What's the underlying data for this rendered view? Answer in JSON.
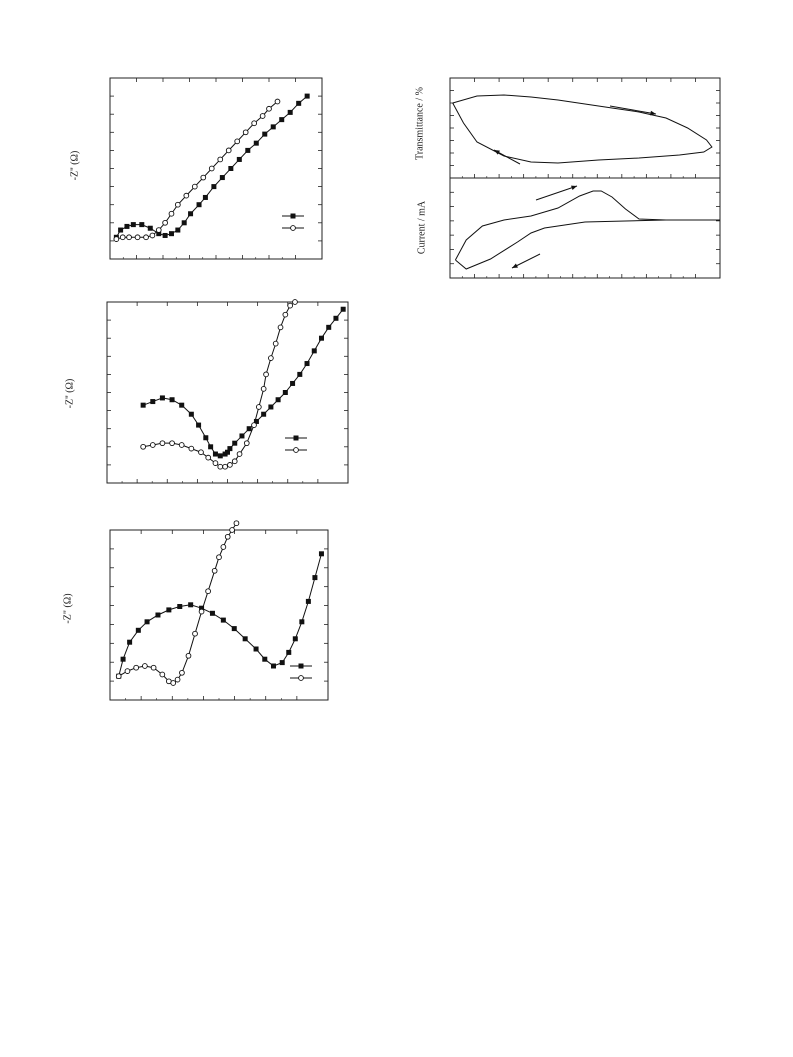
{
  "chart_data": [
    {
      "type": "line",
      "ylabel": "-Z'' (Ω)",
      "xlim": [
        0,
        10
      ],
      "ylim": [
        0,
        10
      ],
      "legend_placement": "center-right",
      "series": [
        {
          "marker": "filled-square",
          "x": [
            0.3,
            0.5,
            0.8,
            1.1,
            1.5,
            1.9,
            2.3,
            2.6,
            2.9,
            3.2,
            3.5,
            3.8,
            4.2,
            4.5,
            4.9,
            5.3,
            5.7,
            6.1,
            6.5,
            6.9,
            7.3,
            7.7,
            8.1,
            8.5,
            8.9,
            9.3
          ],
          "y": [
            1.2,
            1.6,
            1.8,
            1.9,
            1.9,
            1.7,
            1.4,
            1.3,
            1.4,
            1.6,
            2.0,
            2.5,
            3.0,
            3.4,
            4.0,
            4.5,
            5.0,
            5.5,
            6.0,
            6.4,
            6.9,
            7.3,
            7.7,
            8.1,
            8.6,
            9.0
          ]
        },
        {
          "marker": "open-circle",
          "x": [
            0.3,
            0.6,
            0.9,
            1.3,
            1.7,
            2.0,
            2.3,
            2.6,
            2.9,
            3.2,
            3.6,
            4.0,
            4.4,
            4.8,
            5.2,
            5.6,
            6.0,
            6.4,
            6.8,
            7.2,
            7.5,
            7.9
          ],
          "y": [
            1.1,
            1.2,
            1.2,
            1.2,
            1.2,
            1.3,
            1.6,
            2.0,
            2.5,
            3.0,
            3.5,
            4.0,
            4.5,
            5.0,
            5.5,
            6.0,
            6.5,
            7.0,
            7.5,
            7.9,
            8.3,
            8.7
          ]
        }
      ]
    },
    {
      "type": "line",
      "ylabel": "-Z'' (Ω)",
      "xlim": [
        0,
        10
      ],
      "ylim": [
        0,
        10
      ],
      "legend_placement": "center-right",
      "series": [
        {
          "marker": "filled-square",
          "x": [
            1.5,
            1.9,
            2.3,
            2.7,
            3.1,
            3.5,
            3.8,
            4.1,
            4.3,
            4.5,
            4.7,
            4.9,
            5.0,
            5.1,
            5.3,
            5.6,
            5.9,
            6.2,
            6.5,
            6.8,
            7.1,
            7.4,
            7.7,
            8.0,
            8.3,
            8.6,
            8.9,
            9.2,
            9.5,
            9.8
          ],
          "y": [
            4.3,
            4.5,
            4.7,
            4.6,
            4.3,
            3.8,
            3.2,
            2.5,
            2.0,
            1.6,
            1.5,
            1.6,
            1.7,
            1.9,
            2.2,
            2.6,
            3.0,
            3.4,
            3.8,
            4.2,
            4.6,
            5.0,
            5.5,
            6.0,
            6.6,
            7.3,
            8.0,
            8.6,
            9.1,
            9.6
          ]
        },
        {
          "marker": "open-circle",
          "x": [
            1.5,
            1.9,
            2.3,
            2.7,
            3.1,
            3.5,
            3.9,
            4.2,
            4.5,
            4.7,
            4.9,
            5.1,
            5.3,
            5.5,
            5.8,
            6.1,
            6.3,
            6.5,
            6.6,
            6.8,
            7.0,
            7.2,
            7.4,
            7.6,
            7.8
          ],
          "y": [
            2.0,
            2.1,
            2.2,
            2.2,
            2.1,
            1.9,
            1.7,
            1.4,
            1.1,
            0.9,
            0.9,
            1.0,
            1.2,
            1.6,
            2.2,
            3.2,
            4.2,
            5.2,
            6.0,
            6.9,
            7.7,
            8.6,
            9.3,
            9.8,
            10.0
          ]
        }
      ]
    },
    {
      "type": "line",
      "ylabel": "-Z\" (Ω)",
      "xlim": [
        0,
        10
      ],
      "ylim": [
        0,
        10
      ],
      "legend_placement": "bottom-right",
      "series": [
        {
          "marker": "filled-square",
          "x": [
            0.4,
            0.6,
            0.9,
            1.3,
            1.7,
            2.2,
            2.7,
            3.2,
            3.7,
            4.2,
            4.7,
            5.2,
            5.7,
            6.2,
            6.7,
            7.1,
            7.5,
            7.9,
            8.2,
            8.5,
            8.8,
            9.1,
            9.4,
            9.7
          ],
          "y": [
            1.4,
            2.4,
            3.4,
            4.1,
            4.6,
            5.0,
            5.3,
            5.5,
            5.6,
            5.4,
            5.1,
            4.7,
            4.2,
            3.6,
            3.0,
            2.4,
            2.0,
            2.2,
            2.8,
            3.6,
            4.6,
            5.8,
            7.2,
            8.6
          ]
        },
        {
          "marker": "open-circle",
          "x": [
            0.4,
            0.8,
            1.2,
            1.6,
            2.0,
            2.4,
            2.7,
            2.9,
            3.1,
            3.3,
            3.6,
            3.9,
            4.2,
            4.5,
            4.8,
            5.0,
            5.2,
            5.4,
            5.6,
            5.8
          ],
          "y": [
            1.4,
            1.7,
            1.9,
            2.0,
            1.9,
            1.5,
            1.1,
            1.0,
            1.2,
            1.6,
            2.6,
            3.9,
            5.2,
            6.4,
            7.6,
            8.4,
            9.0,
            9.6,
            10.0,
            10.4
          ]
        }
      ]
    },
    {
      "type": "line",
      "ylabel": "Transmittance / %",
      "xlim": [
        0,
        10
      ],
      "ylim": [
        0,
        10
      ],
      "annotations": [
        "arrow right (upper branch)",
        "arrow left-up (lower-left)"
      ],
      "series": [
        {
          "marker": "none",
          "x": [
            0.1,
            1.0,
            2.0,
            3.0,
            4.0,
            5.0,
            6.0,
            7.0,
            8.0,
            8.8,
            9.5,
            9.7,
            9.4,
            8.5,
            7.0,
            5.5,
            4.0,
            3.0,
            2.0,
            1.0,
            0.5,
            0.1
          ],
          "y": [
            7.5,
            8.2,
            8.3,
            8.1,
            7.8,
            7.4,
            7.0,
            6.6,
            6.0,
            5.0,
            3.8,
            3.1,
            2.6,
            2.3,
            2.0,
            1.8,
            1.5,
            1.6,
            2.2,
            3.6,
            5.5,
            7.5
          ]
        }
      ]
    },
    {
      "type": "line",
      "ylabel": "Current / mA",
      "xlim": [
        0,
        10
      ],
      "ylim": [
        0,
        10
      ],
      "annotations": [
        "arrow up-right (upper branch)",
        "arrow down-left (lower branch)"
      ],
      "series": [
        {
          "marker": "none",
          "x": [
            0.2,
            0.6,
            1.2,
            2.0,
            3.0,
            4.0,
            4.8,
            5.3,
            5.6,
            6.0,
            6.5,
            7.0,
            8.0,
            9.0,
            10.0,
            9.0,
            8.0,
            6.5,
            5.0,
            3.5,
            3.0,
            2.5,
            1.5,
            0.6,
            0.2
          ],
          "y": [
            1.8,
            3.8,
            5.2,
            5.8,
            6.2,
            7.0,
            8.2,
            8.7,
            8.7,
            8.1,
            6.9,
            5.9,
            5.8,
            5.8,
            5.8,
            5.8,
            5.8,
            5.7,
            5.6,
            5.0,
            4.5,
            3.6,
            1.9,
            0.9,
            1.8
          ]
        }
      ]
    }
  ]
}
